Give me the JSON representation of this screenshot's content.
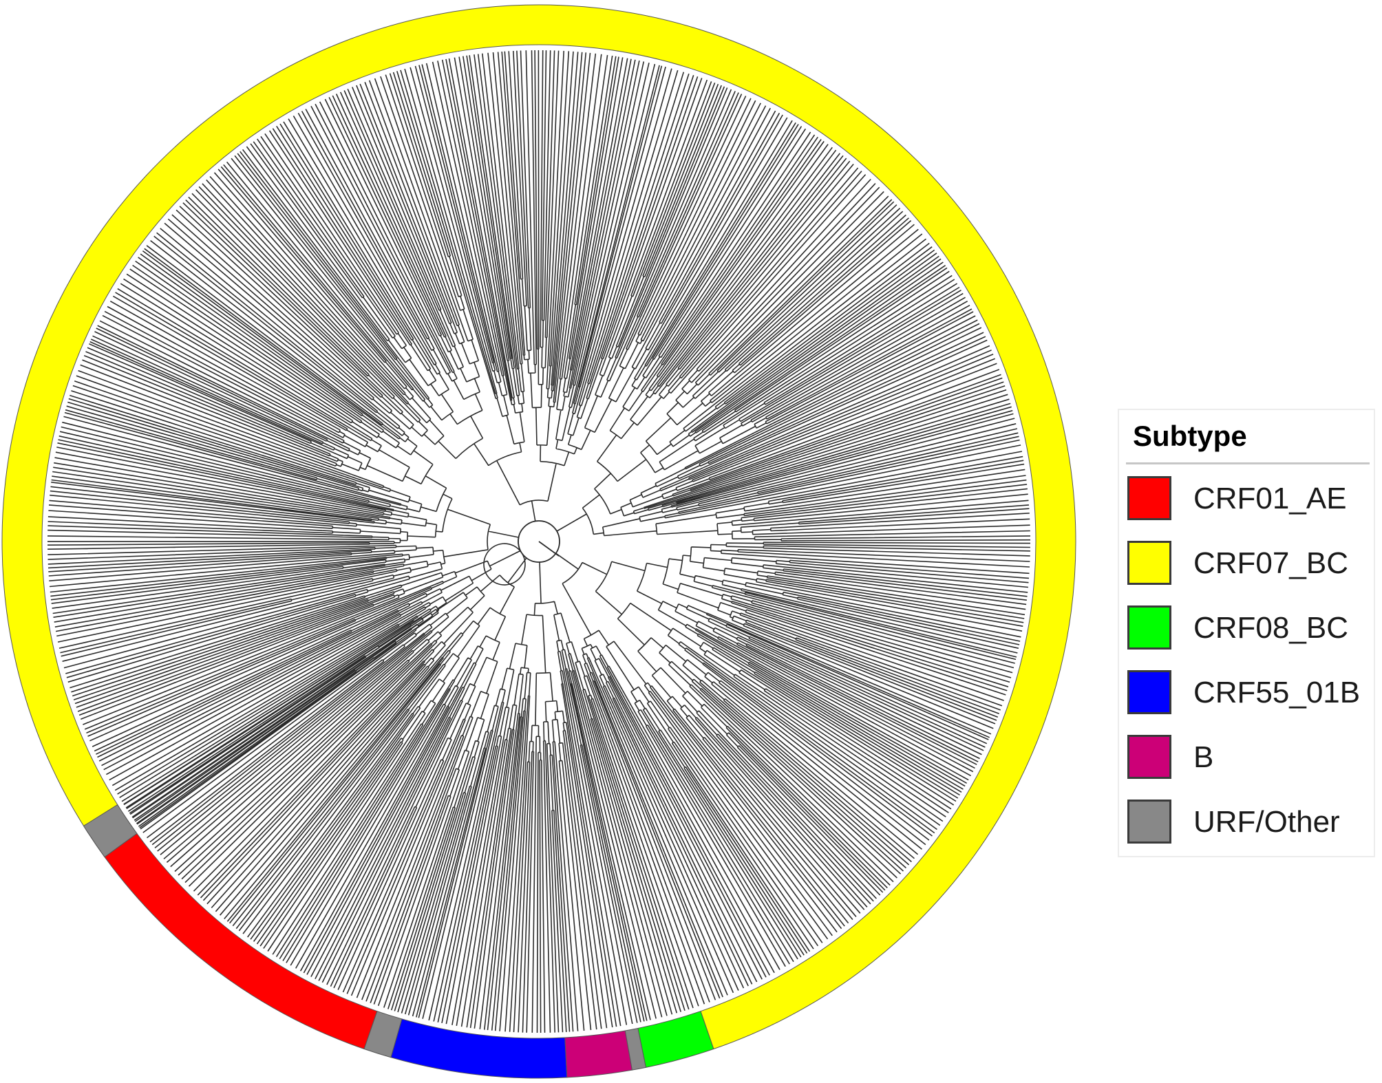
{
  "legend": {
    "title": "Subtype",
    "items": [
      {
        "label": "CRF01_AE",
        "color": "#ff0000"
      },
      {
        "label": "CRF07_BC",
        "color": "#ffff00"
      },
      {
        "label": "CRF08_BC",
        "color": "#00ff00"
      },
      {
        "label": "CRF55_01B",
        "color": "#0000ff"
      },
      {
        "label": "B",
        "color": "#cc0077"
      },
      {
        "label": "URF/Other",
        "color": "#888888"
      }
    ]
  },
  "subtype_ring": [
    {
      "subtype": "CRF01_AE",
      "start_deg": 109,
      "end_deg": 144
    },
    {
      "subtype": "URF/Other",
      "start_deg": 106,
      "end_deg": 109
    },
    {
      "subtype": "CRF55_01B",
      "start_deg": 87,
      "end_deg": 106
    },
    {
      "subtype": "B",
      "start_deg": 80,
      "end_deg": 87
    },
    {
      "subtype": "URF/Other",
      "start_deg": 78.5,
      "end_deg": 80
    },
    {
      "subtype": "CRF08_BC",
      "start_deg": 71,
      "end_deg": 78.5
    },
    {
      "subtype": "CRF07_BC",
      "start_deg": -216,
      "end_deg": 71
    },
    {
      "subtype": "URF/Other",
      "start_deg": 144,
      "end_deg": 148
    }
  ]
}
